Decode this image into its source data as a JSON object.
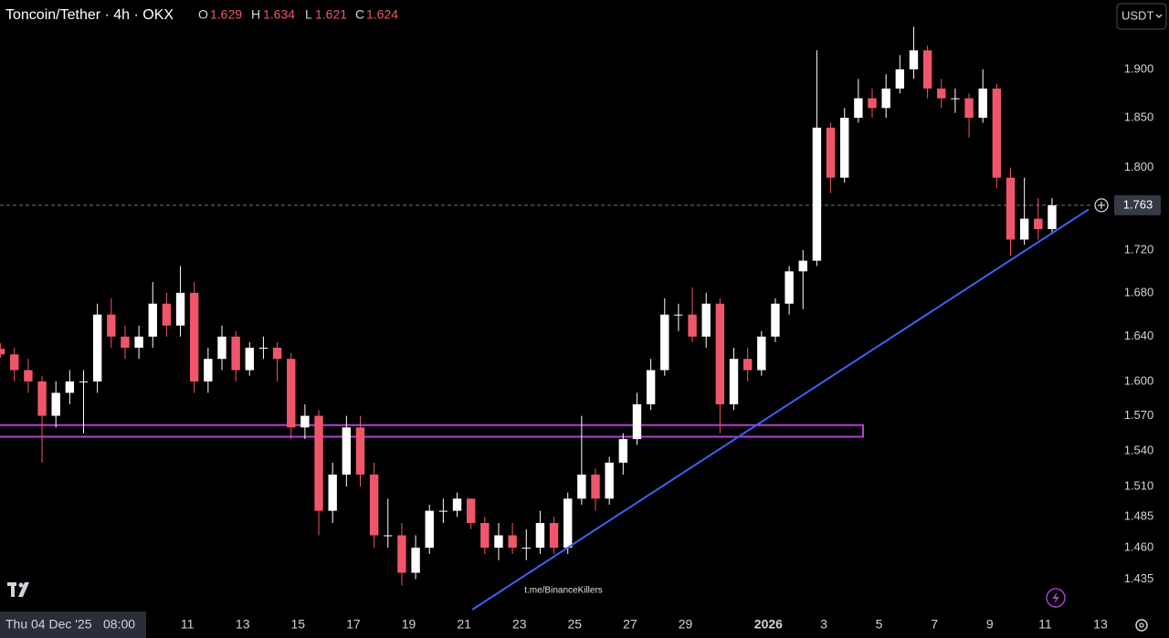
{
  "chart_data": {
    "type": "candlestick",
    "title": "Toncoin/Tether · 4h · OKX",
    "ohlc_labels": [
      "O",
      "H",
      "L",
      "C"
    ],
    "currency": "USDT",
    "watermark": "t.me/BinanceKillers",
    "crosshair_date": "Thu 04 Dec '25",
    "crosshair_time": "08:00",
    "log_scale": true,
    "grid": false,
    "up_color": "#ffffff",
    "down_color": "#f0566a",
    "zone_color": "#b43fd6",
    "trendline_color": "#3d63f0",
    "ylim": [
      1.411,
      1.974
    ],
    "yticks": [
      {
        "value": 1.9,
        "label": "1.900"
      },
      {
        "value": 1.85,
        "label": "1.850"
      },
      {
        "value": 1.8,
        "label": "1.800"
      },
      {
        "value": 1.72,
        "label": "1.720"
      },
      {
        "value": 1.68,
        "label": "1.680"
      },
      {
        "value": 1.64,
        "label": "1.640"
      },
      {
        "value": 1.6,
        "label": "1.600"
      },
      {
        "value": 1.57,
        "label": "1.570"
      },
      {
        "value": 1.54,
        "label": "1.540"
      },
      {
        "value": 1.51,
        "label": "1.510"
      },
      {
        "value": 1.485,
        "label": "1.485"
      },
      {
        "value": 1.46,
        "label": "1.460"
      },
      {
        "value": 1.435,
        "label": "1.435"
      }
    ],
    "xlim": [
      -0.04,
      80.36
    ],
    "xticks": [
      {
        "value": 13.5,
        "label": "11"
      },
      {
        "value": 17.5,
        "label": "13"
      },
      {
        "value": 21.5,
        "label": "15"
      },
      {
        "value": 25.5,
        "label": "17"
      },
      {
        "value": 29.5,
        "label": "19"
      },
      {
        "value": 33.5,
        "label": "21"
      },
      {
        "value": 37.5,
        "label": "23"
      },
      {
        "value": 41.5,
        "label": "25"
      },
      {
        "value": 45.5,
        "label": "27"
      },
      {
        "value": 49.5,
        "label": "29"
      },
      {
        "value": 55.5,
        "label": "2026"
      },
      {
        "value": 59.5,
        "label": "3"
      },
      {
        "value": 63.5,
        "label": "5"
      },
      {
        "value": 67.5,
        "label": "7"
      },
      {
        "value": 71.5,
        "label": "9"
      },
      {
        "value": 75.5,
        "label": "11"
      },
      {
        "value": 79.5,
        "label": "13"
      }
    ],
    "zone": [
      1.552,
      1.562
    ],
    "trendline": [
      1.411,
      1.759
    ],
    "candles": [
      [
        1.629,
        1.634,
        1.621,
        1.624
      ],
      [
        1.624,
        1.63,
        1.6,
        1.61
      ],
      [
        1.61,
        1.62,
        1.59,
        1.6
      ],
      [
        1.6,
        1.605,
        1.53,
        1.57
      ],
      [
        1.57,
        1.6,
        1.56,
        1.59
      ],
      [
        1.59,
        1.61,
        1.58,
        1.6
      ],
      [
        1.6,
        1.61,
        1.555,
        1.6
      ],
      [
        1.6,
        1.67,
        1.59,
        1.66
      ],
      [
        1.66,
        1.675,
        1.63,
        1.64
      ],
      [
        1.64,
        1.65,
        1.62,
        1.63
      ],
      [
        1.63,
        1.65,
        1.62,
        1.64
      ],
      [
        1.64,
        1.69,
        1.63,
        1.67
      ],
      [
        1.67,
        1.68,
        1.64,
        1.65
      ],
      [
        1.65,
        1.705,
        1.64,
        1.68
      ],
      [
        1.68,
        1.69,
        1.59,
        1.6
      ],
      [
        1.6,
        1.63,
        1.59,
        1.62
      ],
      [
        1.62,
        1.65,
        1.61,
        1.64
      ],
      [
        1.64,
        1.645,
        1.6,
        1.61
      ],
      [
        1.61,
        1.635,
        1.605,
        1.63
      ],
      [
        1.63,
        1.64,
        1.62,
        1.63
      ],
      [
        1.63,
        1.635,
        1.6,
        1.62
      ],
      [
        1.62,
        1.625,
        1.55,
        1.56
      ],
      [
        1.56,
        1.58,
        1.55,
        1.57
      ],
      [
        1.57,
        1.575,
        1.47,
        1.49
      ],
      [
        1.49,
        1.53,
        1.48,
        1.52
      ],
      [
        1.52,
        1.57,
        1.51,
        1.56
      ],
      [
        1.56,
        1.57,
        1.51,
        1.52
      ],
      [
        1.52,
        1.53,
        1.46,
        1.47
      ],
      [
        1.47,
        1.5,
        1.46,
        1.47
      ],
      [
        1.47,
        1.48,
        1.43,
        1.44
      ],
      [
        1.44,
        1.47,
        1.435,
        1.46
      ],
      [
        1.46,
        1.495,
        1.455,
        1.49
      ],
      [
        1.49,
        1.5,
        1.48,
        1.49
      ],
      [
        1.49,
        1.505,
        1.485,
        1.5
      ],
      [
        1.5,
        1.5,
        1.475,
        1.48
      ],
      [
        1.48,
        1.485,
        1.455,
        1.46
      ],
      [
        1.46,
        1.48,
        1.45,
        1.47
      ],
      [
        1.47,
        1.48,
        1.455,
        1.46
      ],
      [
        1.46,
        1.475,
        1.45,
        1.46
      ],
      [
        1.46,
        1.49,
        1.455,
        1.48
      ],
      [
        1.48,
        1.485,
        1.455,
        1.46
      ],
      [
        1.46,
        1.505,
        1.455,
        1.5
      ],
      [
        1.5,
        1.57,
        1.495,
        1.52
      ],
      [
        1.52,
        1.525,
        1.49,
        1.5
      ],
      [
        1.5,
        1.535,
        1.495,
        1.53
      ],
      [
        1.53,
        1.555,
        1.52,
        1.55
      ],
      [
        1.55,
        1.59,
        1.545,
        1.58
      ],
      [
        1.58,
        1.62,
        1.575,
        1.61
      ],
      [
        1.61,
        1.675,
        1.605,
        1.66
      ],
      [
        1.66,
        1.67,
        1.645,
        1.66
      ],
      [
        1.66,
        1.685,
        1.635,
        1.64
      ],
      [
        1.64,
        1.68,
        1.63,
        1.67
      ],
      [
        1.67,
        1.675,
        1.555,
        1.58
      ],
      [
        1.58,
        1.63,
        1.575,
        1.62
      ],
      [
        1.62,
        1.63,
        1.6,
        1.61
      ],
      [
        1.61,
        1.645,
        1.605,
        1.64
      ],
      [
        1.64,
        1.675,
        1.635,
        1.67
      ],
      [
        1.67,
        1.705,
        1.66,
        1.7
      ],
      [
        1.7,
        1.72,
        1.665,
        1.71
      ],
      [
        1.71,
        1.92,
        1.705,
        1.84
      ],
      [
        1.84,
        1.845,
        1.775,
        1.79
      ],
      [
        1.79,
        1.86,
        1.785,
        1.85
      ],
      [
        1.85,
        1.89,
        1.845,
        1.87
      ],
      [
        1.87,
        1.88,
        1.85,
        1.86
      ],
      [
        1.86,
        1.895,
        1.85,
        1.88
      ],
      [
        1.88,
        1.915,
        1.875,
        1.9
      ],
      [
        1.9,
        1.945,
        1.89,
        1.92
      ],
      [
        1.92,
        1.925,
        1.87,
        1.88
      ],
      [
        1.88,
        1.89,
        1.86,
        1.87
      ],
      [
        1.87,
        1.88,
        1.855,
        1.87
      ],
      [
        1.87,
        1.875,
        1.83,
        1.85
      ],
      [
        1.85,
        1.9,
        1.845,
        1.88
      ],
      [
        1.88,
        1.885,
        1.78,
        1.79
      ],
      [
        1.79,
        1.8,
        1.715,
        1.73
      ],
      [
        1.73,
        1.79,
        1.725,
        1.75
      ],
      [
        1.75,
        1.77,
        1.73,
        1.74
      ],
      [
        1.74,
        1.77,
        1.735,
        1.763
      ]
    ]
  }
}
